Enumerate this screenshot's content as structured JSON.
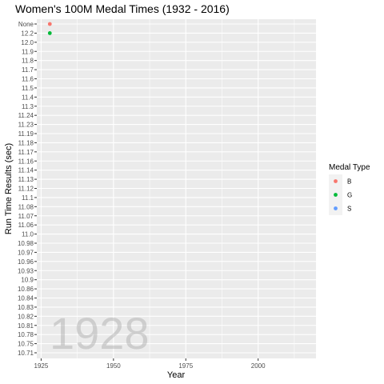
{
  "chart_data": {
    "type": "scatter",
    "title": "Women's 100M Medal Times (1932 - 2016)",
    "xlabel": "Year",
    "ylabel": "Run Time Results (sec)",
    "x_ticks": [
      1925,
      1950,
      1975,
      2000
    ],
    "xlim": [
      1923.5,
      2020
    ],
    "y_categories": [
      "10.71",
      "10.75",
      "10.78",
      "10.81",
      "10.82",
      "10.83",
      "10.84",
      "10.86",
      "10.9",
      "10.93",
      "10.96",
      "10.97",
      "10.98",
      "11.0",
      "11.06",
      "11.07",
      "11.08",
      "11.1",
      "11.12",
      "11.13",
      "11.14",
      "11.16",
      "11.17",
      "11.18",
      "11.19",
      "11.23",
      "11.24",
      "11.3",
      "11.4",
      "11.5",
      "11.6",
      "11.7",
      "11.8",
      "11.9",
      "12.0",
      "12.2",
      "None"
    ],
    "frame_label": "1928",
    "legend": {
      "title": "Medal Type",
      "entries": [
        {
          "label": "B",
          "color": "#f8766d"
        },
        {
          "label": "G",
          "color": "#00ba38"
        },
        {
          "label": "S",
          "color": "#619cff"
        }
      ]
    },
    "series": [
      {
        "name": "B",
        "color": "#f8766d",
        "points": [
          {
            "x": 1928,
            "y": "None"
          }
        ]
      },
      {
        "name": "G",
        "color": "#00ba38",
        "points": [
          {
            "x": 1928,
            "y": "12.2"
          }
        ]
      },
      {
        "name": "S",
        "color": "#619cff",
        "points": []
      }
    ],
    "grid": true,
    "legend_position": "right"
  }
}
